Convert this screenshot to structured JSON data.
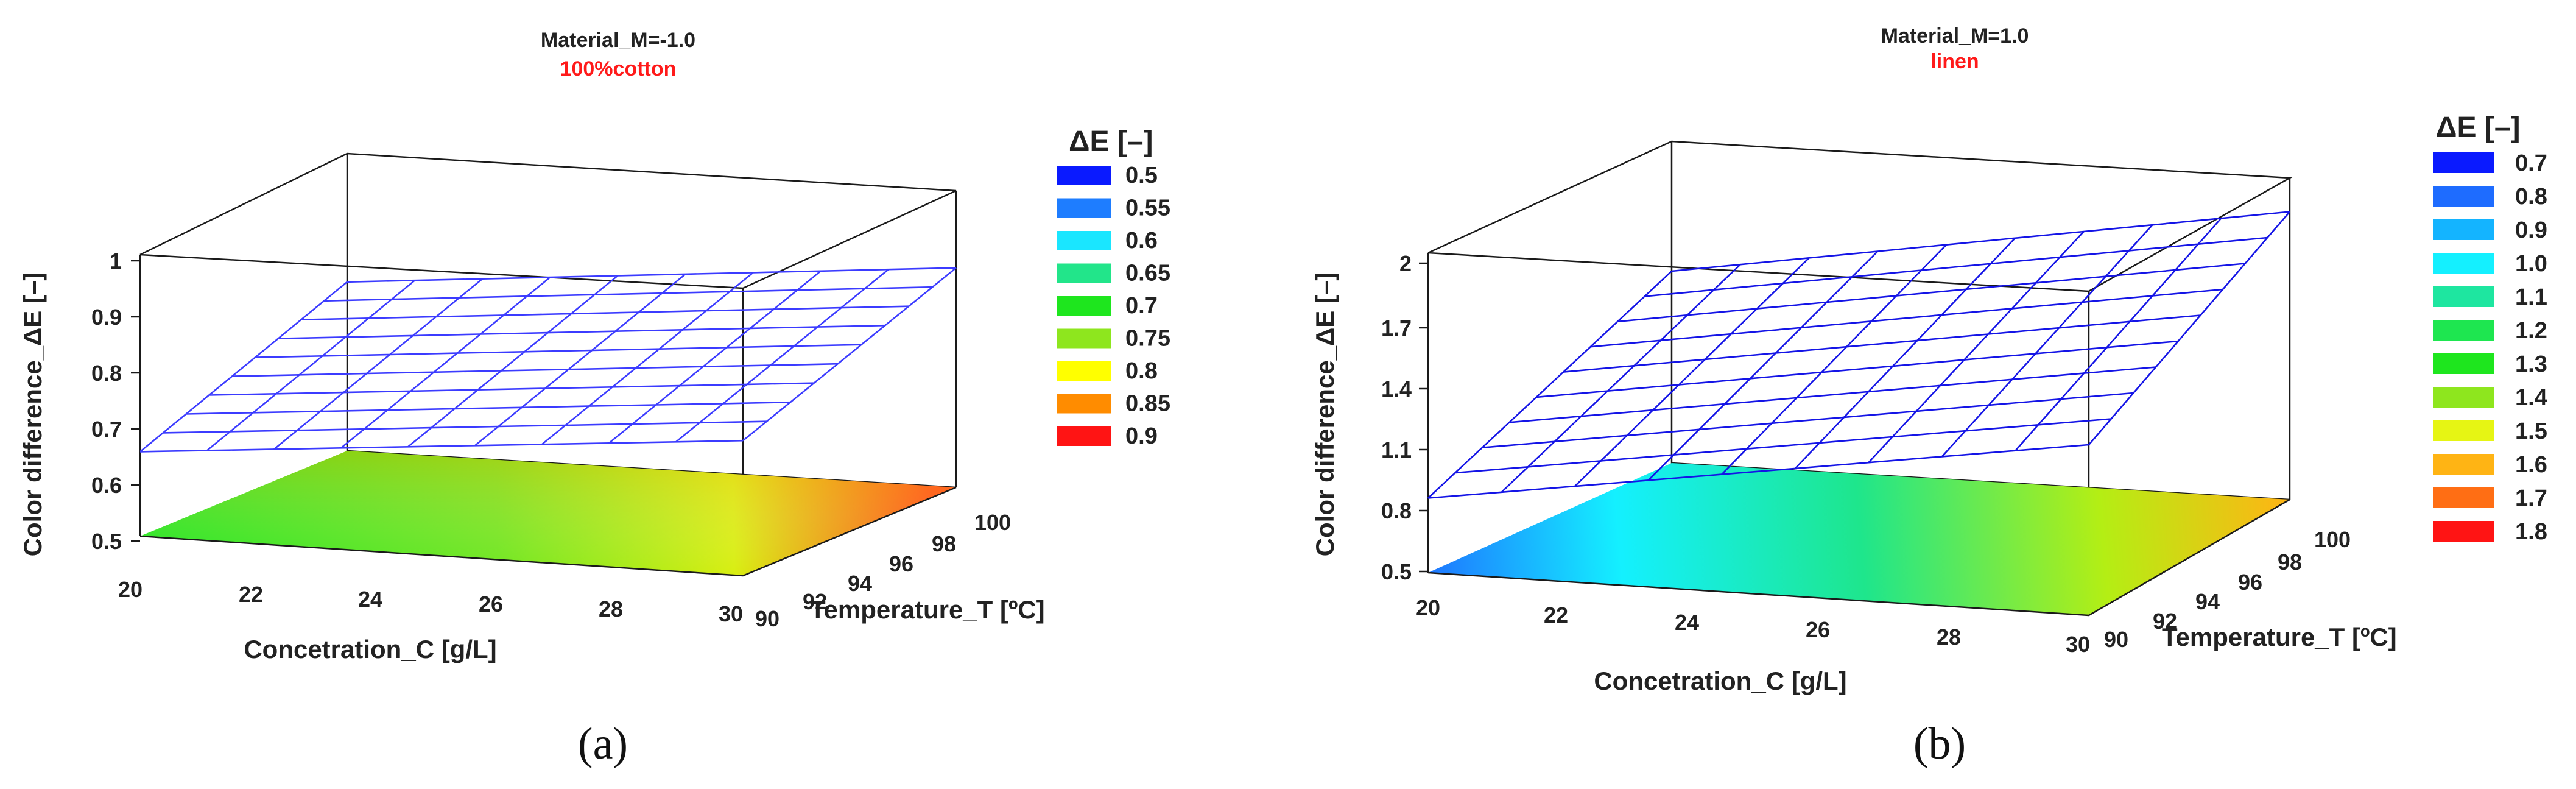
{
  "chart_data": [
    {
      "type": "surface",
      "panel_label": "(a)",
      "title": "Material_M=-1.0",
      "subtitle": "100%cotton",
      "xlabel": "Concetration_C [g/L]",
      "ylabel": "Temperature_T [ºC]",
      "zlabel": "Color difference_ΔE [–]",
      "x_ticks": [
        "20",
        "22",
        "24",
        "26",
        "28",
        "30"
      ],
      "x_range": [
        20,
        30
      ],
      "y_ticks": [
        "90",
        "92",
        "94",
        "96",
        "98",
        "100"
      ],
      "y_range": [
        90,
        100
      ],
      "z_ticks": [
        "0.5",
        "0.6",
        "0.7",
        "0.8",
        "0.9",
        "1"
      ],
      "z_range": [
        0.5,
        1.0
      ],
      "surface": {
        "description": "flat plane, ΔE rises with concentration and temperature",
        "corners": [
          {
            "C": 20,
            "T": 90,
            "dE": 0.65
          },
          {
            "C": 30,
            "T": 90,
            "dE": 0.74
          },
          {
            "C": 20,
            "T": 100,
            "dE": 0.8
          },
          {
            "C": 30,
            "T": 100,
            "dE": 0.89
          }
        ],
        "mesh_divisions": [
          9,
          9
        ]
      },
      "legend": {
        "title": "ΔE [–]",
        "entries": [
          {
            "label": "0.5",
            "color": "#0a1aff"
          },
          {
            "label": "0.55",
            "color": "#1e7dff"
          },
          {
            "label": "0.6",
            "color": "#1ae6ff"
          },
          {
            "label": "0.65",
            "color": "#22e58a"
          },
          {
            "label": "0.7",
            "color": "#1ee61e"
          },
          {
            "label": "0.75",
            "color": "#8ee61e"
          },
          {
            "label": "0.8",
            "color": "#ffff00"
          },
          {
            "label": "0.85",
            "color": "#ff8c00"
          },
          {
            "label": "0.9",
            "color": "#ff1414"
          }
        ]
      },
      "contour_projection": "colored contour plot on floor at ΔE=0.5",
      "mesh_color": "#3b3bff"
    },
    {
      "type": "surface",
      "panel_label": "(b)",
      "title": "Material_M=1.0",
      "subtitle": "linen",
      "xlabel": "Concetration_C [g/L]",
      "ylabel": "Temperature_T [ºC]",
      "zlabel": "Color difference_ΔE [–]",
      "x_ticks": [
        "20",
        "22",
        "24",
        "26",
        "28",
        "30"
      ],
      "x_range": [
        20,
        30
      ],
      "y_ticks": [
        "90",
        "92",
        "94",
        "96",
        "98",
        "100"
      ],
      "y_range": [
        90,
        100
      ],
      "z_ticks": [
        "0.5",
        "0.8",
        "1.1",
        "1.4",
        "1.7",
        "2"
      ],
      "z_range": [
        0.5,
        2.0
      ],
      "surface": {
        "description": "flat plane, ΔE rises with concentration and temperature",
        "corners": [
          {
            "C": 20,
            "T": 90,
            "dE": 0.85
          },
          {
            "C": 30,
            "T": 90,
            "dE": 1.3
          },
          {
            "C": 20,
            "T": 100,
            "dE": 1.4
          },
          {
            "C": 30,
            "T": 100,
            "dE": 1.85
          }
        ],
        "mesh_divisions": [
          9,
          9
        ]
      },
      "legend": {
        "title": "ΔE [–]",
        "entries": [
          {
            "label": "0.7",
            "color": "#0a1aff"
          },
          {
            "label": "0.8",
            "color": "#1e6cff"
          },
          {
            "label": "0.9",
            "color": "#14b4ff"
          },
          {
            "label": "1.0",
            "color": "#14f0ff"
          },
          {
            "label": "1.1",
            "color": "#1ee6a0"
          },
          {
            "label": "1.2",
            "color": "#1ee650"
          },
          {
            "label": "1.3",
            "color": "#1ee61e"
          },
          {
            "label": "1.4",
            "color": "#8ee61e"
          },
          {
            "label": "1.5",
            "color": "#e6f514"
          },
          {
            "label": "1.6",
            "color": "#ffb414"
          },
          {
            "label": "1.7",
            "color": "#ff6e14"
          },
          {
            "label": "1.8",
            "color": "#ff1414"
          }
        ]
      },
      "contour_projection": "colored contour plot on floor at ΔE=0.5",
      "mesh_color": "#1414e6"
    }
  ]
}
